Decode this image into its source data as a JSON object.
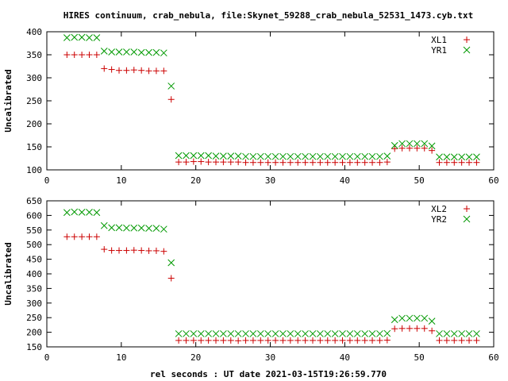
{
  "title": "HIRES continuum, crab_nebula, file:Skynet_59288_crab_nebula_52531_1473.cyb.txt",
  "xlabel": "rel seconds : UT date 2021-03-15T19:26:59.770",
  "colors": {
    "plus": "#cc0000",
    "cross": "#009900",
    "axis": "#000000"
  },
  "chart_data": [
    {
      "type": "scatter",
      "title": "",
      "xlabel": "",
      "ylabel": "Uncalibrated",
      "xlim": [
        0,
        60
      ],
      "ylim": [
        100,
        400
      ],
      "xticks": [
        0,
        10,
        20,
        30,
        40,
        50,
        60
      ],
      "yticks": [
        100,
        150,
        200,
        250,
        300,
        350,
        400
      ],
      "legend_position": "top-right",
      "grid": false,
      "series": [
        {
          "name": "XL1",
          "marker": "plus",
          "x": [
            2.7,
            3.7,
            4.7,
            5.7,
            6.7,
            7.7,
            8.7,
            9.7,
            10.7,
            11.7,
            12.7,
            13.7,
            14.7,
            15.7,
            16.7,
            17.7,
            18.7,
            19.7,
            20.7,
            21.7,
            22.7,
            23.7,
            24.7,
            25.7,
            26.7,
            27.7,
            28.7,
            29.7,
            30.7,
            31.7,
            32.7,
            33.7,
            34.7,
            35.7,
            36.7,
            37.7,
            38.7,
            39.7,
            40.7,
            41.7,
            42.7,
            43.7,
            44.7,
            45.7,
            46.7,
            47.7,
            48.7,
            49.7,
            50.7,
            51.7,
            52.7,
            53.7,
            54.7,
            55.7,
            56.7,
            57.7
          ],
          "y": [
            350,
            350,
            350,
            350,
            350,
            320,
            318,
            316,
            316,
            317,
            316,
            315,
            315,
            315,
            253,
            117,
            117,
            118,
            118,
            117,
            117,
            117,
            117,
            117,
            116,
            116,
            116,
            116,
            116,
            116,
            116,
            116,
            116,
            116,
            116,
            116,
            116,
            116,
            116,
            116,
            116,
            116,
            116,
            117,
            146,
            147,
            147,
            147,
            147,
            142,
            116,
            116,
            116,
            116,
            116,
            116
          ]
        },
        {
          "name": "YR1",
          "marker": "cross",
          "x": [
            2.7,
            3.7,
            4.7,
            5.7,
            6.7,
            7.7,
            8.7,
            9.7,
            10.7,
            11.7,
            12.7,
            13.7,
            14.7,
            15.7,
            16.7,
            17.7,
            18.7,
            19.7,
            20.7,
            21.7,
            22.7,
            23.7,
            24.7,
            25.7,
            26.7,
            27.7,
            28.7,
            29.7,
            30.7,
            31.7,
            32.7,
            33.7,
            34.7,
            35.7,
            36.7,
            37.7,
            38.7,
            39.7,
            40.7,
            41.7,
            42.7,
            43.7,
            44.7,
            45.7,
            46.7,
            47.7,
            48.7,
            49.7,
            50.7,
            51.7,
            52.7,
            53.7,
            54.7,
            55.7,
            56.7,
            57.7
          ],
          "y": [
            387,
            388,
            388,
            387,
            387,
            358,
            356,
            356,
            356,
            356,
            355,
            355,
            355,
            354,
            282,
            131,
            131,
            131,
            131,
            131,
            130,
            130,
            130,
            130,
            129,
            129,
            129,
            129,
            129,
            129,
            129,
            129,
            129,
            129,
            129,
            129,
            129,
            129,
            129,
            129,
            129,
            129,
            129,
            130,
            153,
            157,
            157,
            157,
            157,
            152,
            128,
            128,
            128,
            128,
            128,
            128
          ]
        }
      ]
    },
    {
      "type": "scatter",
      "title": "",
      "xlabel": "rel seconds : UT date 2021-03-15T19:26:59.770",
      "ylabel": "Uncalibrated",
      "xlim": [
        0,
        60
      ],
      "ylim": [
        150,
        650
      ],
      "xticks": [
        0,
        10,
        20,
        30,
        40,
        50,
        60
      ],
      "yticks": [
        150,
        200,
        250,
        300,
        350,
        400,
        450,
        500,
        550,
        600,
        650
      ],
      "legend_position": "top-right",
      "grid": false,
      "series": [
        {
          "name": "XL2",
          "marker": "plus",
          "x": [
            2.7,
            3.7,
            4.7,
            5.7,
            6.7,
            7.7,
            8.7,
            9.7,
            10.7,
            11.7,
            12.7,
            13.7,
            14.7,
            15.7,
            16.7,
            17.7,
            18.7,
            19.7,
            20.7,
            21.7,
            22.7,
            23.7,
            24.7,
            25.7,
            26.7,
            27.7,
            28.7,
            29.7,
            30.7,
            31.7,
            32.7,
            33.7,
            34.7,
            35.7,
            36.7,
            37.7,
            38.7,
            39.7,
            40.7,
            41.7,
            42.7,
            43.7,
            44.7,
            45.7,
            46.7,
            47.7,
            48.7,
            49.7,
            50.7,
            51.7,
            52.7,
            53.7,
            54.7,
            55.7,
            56.7,
            57.7
          ],
          "y": [
            527,
            527,
            527,
            527,
            527,
            484,
            480,
            480,
            480,
            481,
            480,
            479,
            479,
            477,
            385,
            172,
            172,
            172,
            172,
            172,
            172,
            172,
            172,
            171,
            172,
            172,
            172,
            172,
            172,
            172,
            172,
            172,
            172,
            172,
            172,
            172,
            172,
            172,
            172,
            172,
            172,
            172,
            172,
            173,
            212,
            213,
            213,
            213,
            213,
            205,
            172,
            172,
            172,
            172,
            172,
            172
          ]
        },
        {
          "name": "YR2",
          "marker": "cross",
          "x": [
            2.7,
            3.7,
            4.7,
            5.7,
            6.7,
            7.7,
            8.7,
            9.7,
            10.7,
            11.7,
            12.7,
            13.7,
            14.7,
            15.7,
            16.7,
            17.7,
            18.7,
            19.7,
            20.7,
            21.7,
            22.7,
            23.7,
            24.7,
            25.7,
            26.7,
            27.7,
            28.7,
            29.7,
            30.7,
            31.7,
            32.7,
            33.7,
            34.7,
            35.7,
            36.7,
            37.7,
            38.7,
            39.7,
            40.7,
            41.7,
            42.7,
            43.7,
            44.7,
            45.7,
            46.7,
            47.7,
            48.7,
            49.7,
            50.7,
            51.7,
            52.7,
            53.7,
            54.7,
            55.7,
            56.7,
            57.7
          ],
          "y": [
            610,
            612,
            611,
            611,
            610,
            565,
            558,
            558,
            557,
            557,
            557,
            556,
            556,
            553,
            438,
            195,
            195,
            195,
            195,
            195,
            195,
            195,
            195,
            195,
            195,
            195,
            195,
            195,
            195,
            195,
            195,
            195,
            195,
            195,
            195,
            195,
            195,
            195,
            195,
            195,
            195,
            195,
            195,
            196,
            243,
            248,
            248,
            248,
            248,
            238,
            195,
            195,
            195,
            195,
            195,
            195
          ]
        }
      ]
    }
  ]
}
